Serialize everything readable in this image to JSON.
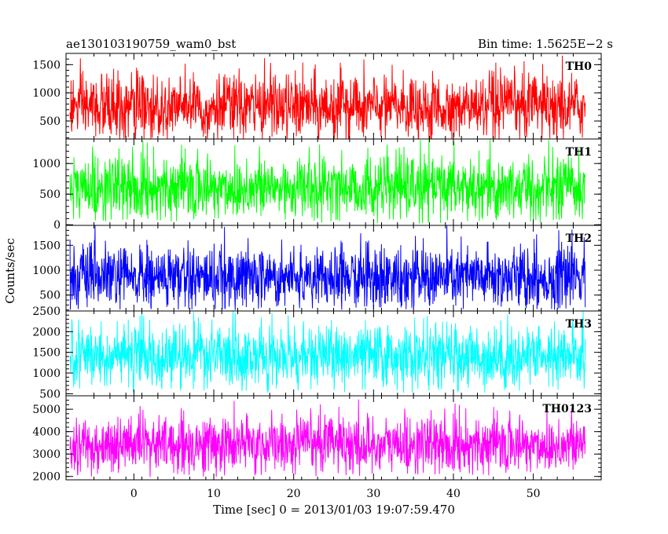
{
  "header": {
    "left_title": "ae130103190759_wam0_bst",
    "right_title": "Bin time: 1.5625E−2 s"
  },
  "chart_data": {
    "type": "line",
    "title": "ae130103190759_wam0_bst",
    "subtitle": "Bin time: 1.5625E−2 s",
    "xlabel": "Time [sec] 0 = 2013/01/03 19:07:59.470",
    "ylabel": "Counts/sec",
    "xlim": [
      -8.5,
      58.5
    ],
    "x_ticks": [
      0,
      10,
      20,
      30,
      40,
      50
    ],
    "x_tick_labels": [
      "0",
      "10",
      "20",
      "30",
      "40",
      "50"
    ],
    "data_x_range": [
      -8,
      56.5
    ],
    "bin_time": 0.015625,
    "grid": false,
    "panels": [
      {
        "name": "TH0",
        "color": "#ff0000",
        "ylim": [
          180,
          1700
        ],
        "y_ticks": [
          500,
          1000,
          1500
        ],
        "y_tick_labels": [
          "500",
          "1000",
          "1500"
        ],
        "mean": 750,
        "sigma": 290,
        "min": 140,
        "max": 1720
      },
      {
        "name": "TH1",
        "color": "#00ff00",
        "ylim": [
          -10,
          1400
        ],
        "y_ticks": [
          0,
          500,
          1000
        ],
        "y_tick_labels": [
          "0",
          "500",
          "1000"
        ],
        "mean": 600,
        "sigma": 270,
        "min": 20,
        "max": 1420
      },
      {
        "name": "TH2",
        "color": "#0000ff",
        "ylim": [
          180,
          1900
        ],
        "y_ticks": [
          500,
          1000,
          1500
        ],
        "y_tick_labels": [
          "500",
          "1000",
          "1500"
        ],
        "mean": 850,
        "sigma": 320,
        "min": 200,
        "max": 1920
      },
      {
        "name": "TH3",
        "color": "#00ffff",
        "ylim": [
          450,
          2500
        ],
        "y_ticks": [
          500,
          1000,
          1500,
          2000,
          2500
        ],
        "y_tick_labels": [
          "500",
          "1000",
          "1500",
          "2000",
          "2500"
        ],
        "mean": 1400,
        "sigma": 380,
        "min": 520,
        "max": 2550
      },
      {
        "name": "TH0123",
        "color": "#ff00ff",
        "ylim": [
          1850,
          5600
        ],
        "y_ticks": [
          2000,
          3000,
          4000,
          5000
        ],
        "y_tick_labels": [
          "2000",
          "3000",
          "4000",
          "5000"
        ],
        "mean": 3400,
        "sigma": 650,
        "min": 1950,
        "max": 5650
      }
    ]
  }
}
